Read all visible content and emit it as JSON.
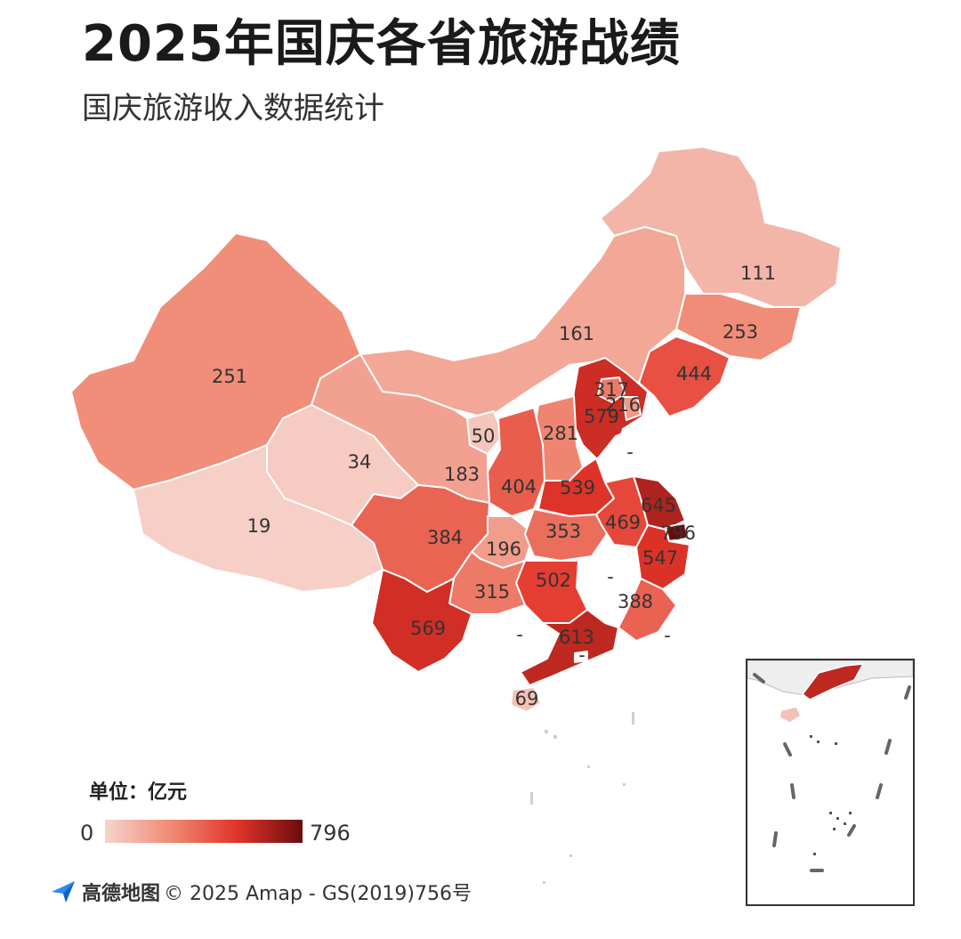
{
  "title": "2025年国庆各省旅游战绩",
  "subtitle": "国庆旅游收入数据统计",
  "legend": {
    "unit": "单位：亿元",
    "min": "0",
    "max": "796",
    "colors": [
      "#f6d4cd",
      "#f08a74",
      "#e2342a",
      "#6a0c0e"
    ]
  },
  "attribution": {
    "brand": "高德地图",
    "text": "© 2025 Amap - GS(2019)756号"
  },
  "no_data_color": "#ffffff",
  "regions": [
    {
      "id": "heilongjiang",
      "label": "111",
      "value": 111
    },
    {
      "id": "jilin",
      "label": "253",
      "value": 253
    },
    {
      "id": "liaoning",
      "label": "444",
      "value": 444
    },
    {
      "id": "inner-mongolia",
      "label": "161",
      "value": 161
    },
    {
      "id": "beijing",
      "label": "317",
      "value": 317
    },
    {
      "id": "tianjin",
      "label": "216",
      "value": 216
    },
    {
      "id": "hebei",
      "label": "579",
      "value": 579
    },
    {
      "id": "shanxi",
      "label": "281",
      "value": 281
    },
    {
      "id": "shandong",
      "label": "-",
      "value": null
    },
    {
      "id": "ningxia",
      "label": "50",
      "value": 50
    },
    {
      "id": "gansu",
      "label": "183",
      "value": 183
    },
    {
      "id": "shaanxi",
      "label": "404",
      "value": 404
    },
    {
      "id": "henan",
      "label": "539",
      "value": 539
    },
    {
      "id": "jiangsu",
      "label": "645",
      "value": 645
    },
    {
      "id": "shanghai",
      "label": "796",
      "value": 796
    },
    {
      "id": "anhui",
      "label": "469",
      "value": 469
    },
    {
      "id": "hubei",
      "label": "353",
      "value": 353
    },
    {
      "id": "zhejiang",
      "label": "547",
      "value": 547
    },
    {
      "id": "chongqing",
      "label": "196",
      "value": 196
    },
    {
      "id": "sichuan",
      "label": "384",
      "value": 384
    },
    {
      "id": "qinghai",
      "label": "34",
      "value": 34
    },
    {
      "id": "xinjiang",
      "label": "251",
      "value": 251
    },
    {
      "id": "tibet",
      "label": "19",
      "value": 19
    },
    {
      "id": "hunan",
      "label": "502",
      "value": 502
    },
    {
      "id": "jiangxi",
      "label": "-",
      "value": null
    },
    {
      "id": "guizhou",
      "label": "315",
      "value": 315
    },
    {
      "id": "yunnan",
      "label": "569",
      "value": 569
    },
    {
      "id": "guangxi",
      "label": "-",
      "value": null
    },
    {
      "id": "guangdong",
      "label": "613",
      "value": 613
    },
    {
      "id": "fujian",
      "label": "388",
      "value": 388
    },
    {
      "id": "taiwan",
      "label": "-",
      "value": null
    },
    {
      "id": "hongkong",
      "label": "-",
      "value": null
    },
    {
      "id": "hainan",
      "label": "69",
      "value": 69
    }
  ]
}
